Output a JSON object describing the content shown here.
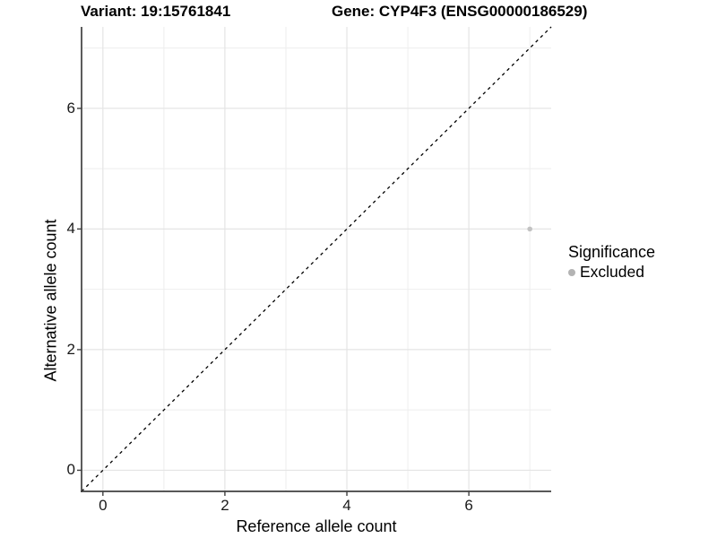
{
  "chart_data": {
    "type": "scatter",
    "titles": {
      "left": "Variant: 19:15761841",
      "right": "Gene: CYP4F3 (ENSG00000186529)"
    },
    "xlabel": "Reference allele count",
    "ylabel": "Alternative allele count",
    "xlim": [
      -0.35,
      7.35
    ],
    "ylim": [
      -0.35,
      7.35
    ],
    "xticks": {
      "values": [
        0,
        2,
        4,
        6
      ],
      "labels": [
        "0",
        "2",
        "4",
        "6"
      ]
    },
    "yticks": {
      "values": [
        0,
        2,
        4,
        6
      ],
      "labels": [
        "0",
        "2",
        "4",
        "6"
      ]
    },
    "grid": {
      "major_values": [
        0,
        2,
        4,
        6
      ],
      "minor_values": [
        1,
        3,
        5,
        7
      ]
    },
    "reference_line": {
      "type": "identity",
      "slope": 1,
      "intercept": 0,
      "style": "dashed",
      "color": "#000000"
    },
    "series": [
      {
        "name": "Excluded",
        "marker_color": "#c2c2c2",
        "points": [
          {
            "x": 7,
            "y": 4
          }
        ]
      }
    ],
    "legend": {
      "title": "Significance",
      "position": "right",
      "entries": [
        {
          "label": "Excluded",
          "marker_color": "#b3b3b3"
        }
      ]
    }
  },
  "colors": {
    "background": "#ffffff",
    "grid_major": "#e4e4e4",
    "grid_minor": "#eeeeee",
    "axis_line": "#404040",
    "tick_mark": "#404040",
    "text": "#000000"
  }
}
